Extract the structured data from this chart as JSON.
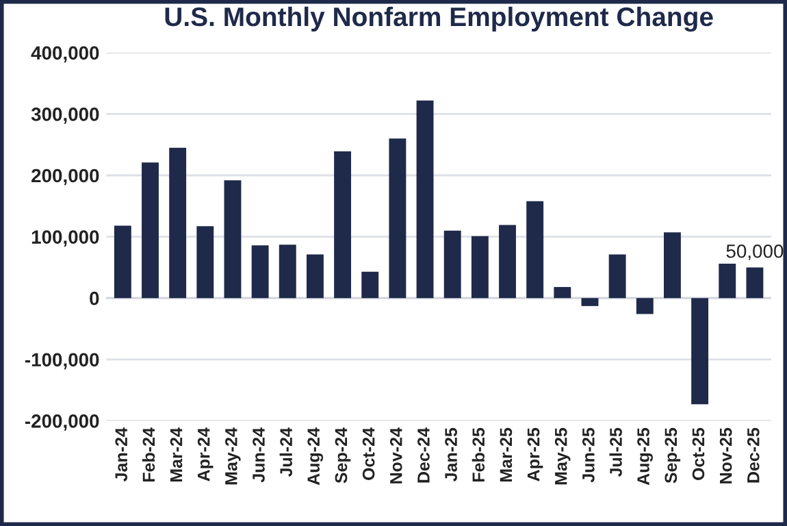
{
  "chart_data": {
    "type": "bar",
    "title": "U.S. Monthly Nonfarm Employment Change",
    "categories": [
      "Jan-24",
      "Feb-24",
      "Mar-24",
      "Apr-24",
      "May-24",
      "Jun-24",
      "Jul-24",
      "Aug-24",
      "Sep-24",
      "Oct-24",
      "Nov-24",
      "Dec-24",
      "Jan-25",
      "Feb-25",
      "Mar-25",
      "Apr-25",
      "May-25",
      "Jun-25",
      "Jul-25",
      "Aug-25",
      "Sep-25",
      "Oct-25",
      "Nov-25",
      "Dec-25"
    ],
    "values": [
      118000,
      221000,
      245000,
      117000,
      192000,
      86000,
      87000,
      71000,
      239000,
      43000,
      260000,
      322000,
      110000,
      101000,
      119000,
      158000,
      18000,
      -13000,
      71000,
      -26000,
      107000,
      -173000,
      56000,
      50000
    ],
    "value_labels": [
      null,
      null,
      null,
      null,
      null,
      null,
      null,
      null,
      null,
      null,
      null,
      null,
      null,
      null,
      null,
      null,
      null,
      null,
      null,
      null,
      null,
      null,
      null,
      "50,000"
    ],
    "color": "#1f2a4a",
    "ylim": [
      -200000,
      400000
    ],
    "yticks": [
      {
        "value": -200000,
        "label": "-200,000"
      },
      {
        "value": -100000,
        "label": "-100,000"
      },
      {
        "value": 0,
        "label": "0"
      },
      {
        "value": 100000,
        "label": "100,000"
      },
      {
        "value": 200000,
        "label": "200,000"
      },
      {
        "value": 300000,
        "label": "300,000"
      },
      {
        "value": 400000,
        "label": "400,000"
      }
    ],
    "grid": "y"
  }
}
